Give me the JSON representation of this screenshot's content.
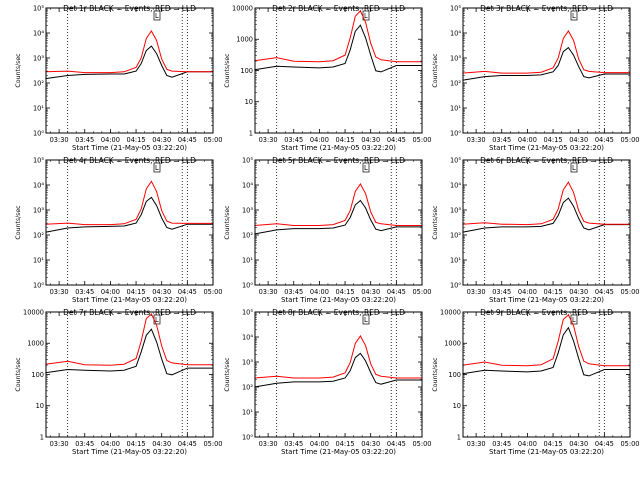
{
  "chart_data": {
    "common": {
      "type": "line",
      "xlabel": "Start Time (21-May-05 03:22:20)",
      "ylabel": "Counts/sec",
      "xlim": [
        "03:22:20",
        "05:00:00"
      ],
      "x_ticks": [
        "03:30",
        "03:45",
        "04:00",
        "04:15",
        "04:30",
        "04:45",
        "05:00"
      ],
      "vertical_dotted_lines": [
        "03:35",
        "04:42",
        "04:45"
      ],
      "legend_box_text": "L",
      "series_colors": {
        "Events": "#000000",
        "LLD": "#ff0000"
      },
      "x": [
        "03:22",
        "03:35",
        "03:45",
        "04:00",
        "04:08",
        "04:15",
        "04:18",
        "04:21",
        "04:24",
        "04:27",
        "04:30",
        "04:33",
        "04:36",
        "04:45",
        "05:00"
      ]
    },
    "panels": [
      {
        "title": "Det 1r BLACK = Events, RED = LLD",
        "y_scale": "log",
        "ylim": [
          1,
          100000
        ],
        "y_ticks": [
          "10⁰",
          "10¹",
          "10²",
          "10³",
          "10⁴",
          "10⁵"
        ],
        "series": [
          {
            "name": "Events",
            "color": "#000000",
            "values": [
              150,
              200,
              220,
              230,
              230,
              300,
              600,
              2000,
              3000,
              1500,
              500,
              200,
              170,
              280,
              280
            ]
          },
          {
            "name": "LLD",
            "color": "#ff0000",
            "values": [
              280,
              300,
              260,
              260,
              280,
              420,
              1000,
              6000,
              12000,
              5000,
              900,
              350,
              300,
              280,
              280
            ]
          }
        ]
      },
      {
        "title": "Det 2r BLACK = Events, RED = LLD",
        "y_scale": "log",
        "ylim": [
          1,
          15000
        ],
        "y_ticks": [
          "1",
          "10",
          "100",
          "1000",
          "10000"
        ],
        "series": [
          {
            "name": "Events",
            "color": "#000000",
            "values": [
              130,
              170,
              160,
              150,
              160,
              210,
              600,
              2500,
              4000,
              1500,
              400,
              120,
              110,
              180,
              180
            ]
          },
          {
            "name": "LLD",
            "color": "#ff0000",
            "values": [
              260,
              330,
              250,
              240,
              260,
              400,
              1500,
              8000,
              12000,
              5000,
              1000,
              350,
              280,
              240,
              240
            ]
          }
        ]
      },
      {
        "title": "Det 3r BLACK = Events, RED = LLD",
        "y_scale": "log",
        "ylim": [
          1,
          100000
        ],
        "y_ticks": [
          "10⁰",
          "10¹",
          "10²",
          "10³",
          "10⁴",
          "10⁵"
        ],
        "series": [
          {
            "name": "Events",
            "color": "#000000",
            "values": [
              130,
              180,
              200,
              200,
              210,
              280,
              500,
              1800,
              2600,
              1300,
              450,
              180,
              160,
              230,
              230
            ]
          },
          {
            "name": "LLD",
            "color": "#ff0000",
            "values": [
              250,
              290,
              250,
              250,
              270,
              400,
              1000,
              6000,
              12000,
              5000,
              900,
              340,
              290,
              260,
              260
            ]
          }
        ]
      },
      {
        "title": "Det 4r BLACK = Events, RED = LLD",
        "y_scale": "log",
        "ylim": [
          1,
          100000
        ],
        "y_ticks": [
          "10⁰",
          "10¹",
          "10²",
          "10³",
          "10⁴",
          "10⁵"
        ],
        "series": [
          {
            "name": "Events",
            "color": "#000000",
            "values": [
              130,
              190,
              210,
              220,
              230,
              300,
              650,
              2200,
              3200,
              1500,
              480,
              200,
              170,
              270,
              270
            ]
          },
          {
            "name": "LLD",
            "color": "#ff0000",
            "values": [
              270,
              300,
              260,
              260,
              280,
              420,
              1100,
              7000,
              14000,
              5500,
              950,
              360,
              300,
              290,
              290
            ]
          }
        ]
      },
      {
        "title": "Det 5r BLACK = Events, RED = LLD",
        "y_scale": "log",
        "ylim": [
          1,
          100000
        ],
        "y_ticks": [
          "10⁰",
          "10¹",
          "10²",
          "10³",
          "10⁴",
          "10⁵"
        ],
        "series": [
          {
            "name": "Events",
            "color": "#000000",
            "values": [
              110,
              160,
              180,
              180,
              190,
              250,
              500,
              1600,
              2400,
              1200,
              400,
              170,
              150,
              210,
              210
            ]
          },
          {
            "name": "LLD",
            "color": "#ff0000",
            "values": [
              240,
              280,
              240,
              240,
              260,
              380,
              950,
              5500,
              11000,
              4500,
              850,
              320,
              280,
              240,
              240
            ]
          }
        ]
      },
      {
        "title": "Det 6r BLACK = Events, RED = LLD",
        "y_scale": "log",
        "ylim": [
          1,
          100000
        ],
        "y_ticks": [
          "10⁰",
          "10¹",
          "10²",
          "10³",
          "10⁴",
          "10⁵"
        ],
        "series": [
          {
            "name": "Events",
            "color": "#000000",
            "values": [
              130,
              190,
              210,
              210,
              220,
              290,
              600,
              2000,
              3000,
              1400,
              460,
              190,
              160,
              260,
              260
            ]
          },
          {
            "name": "LLD",
            "color": "#ff0000",
            "values": [
              270,
              310,
              270,
              260,
              280,
              420,
              1100,
              6500,
              13000,
              5000,
              950,
              350,
              300,
              270,
              270
            ]
          }
        ]
      },
      {
        "title": "Det 7r BLACK = Events, RED = LLD",
        "y_scale": "log",
        "ylim": [
          1,
          15000
        ],
        "y_ticks": [
          "1",
          "10",
          "100",
          "1000",
          "10000"
        ],
        "series": [
          {
            "name": "Events",
            "color": "#000000",
            "values": [
              140,
              180,
              170,
              160,
              170,
              230,
              700,
              2500,
              4000,
              1500,
              400,
              130,
              120,
              200,
              200
            ]
          },
          {
            "name": "LLD",
            "color": "#ff0000",
            "values": [
              270,
              340,
              260,
              250,
              270,
              420,
              1600,
              9000,
              13000,
              5500,
              1100,
              360,
              300,
              260,
              260
            ]
          }
        ]
      },
      {
        "title": "Det 8r BLACK = Events, RED = LLD",
        "y_scale": "log",
        "ylim": [
          1,
          100000
        ],
        "y_ticks": [
          "10⁰",
          "10¹",
          "10²",
          "10³",
          "10⁴",
          "10⁵"
        ],
        "series": [
          {
            "name": "Events",
            "color": "#000000",
            "values": [
              100,
              140,
              160,
              160,
              170,
              230,
              450,
              1500,
              2200,
              1100,
              380,
              150,
              130,
              190,
              190
            ]
          },
          {
            "name": "LLD",
            "color": "#ff0000",
            "values": [
              230,
              270,
              230,
              230,
              250,
              370,
              950,
              5500,
              11000,
              4500,
              850,
              320,
              270,
              230,
              230
            ]
          }
        ]
      },
      {
        "title": "Det 9r BLACK = Events, RED = LLD",
        "y_scale": "log",
        "ylim": [
          1,
          15000
        ],
        "y_ticks": [
          "1",
          "10",
          "100",
          "1000",
          "10000"
        ],
        "series": [
          {
            "name": "Events",
            "color": "#000000",
            "values": [
              130,
              170,
              160,
              150,
              160,
              210,
              650,
              2600,
              4500,
              1600,
              420,
              120,
              110,
              180,
              180
            ]
          },
          {
            "name": "LLD",
            "color": "#ff0000",
            "values": [
              250,
              320,
              250,
              240,
              260,
              410,
              1600,
              8500,
              12000,
              5200,
              1050,
              340,
              280,
              240,
              240
            ]
          }
        ]
      }
    ]
  }
}
